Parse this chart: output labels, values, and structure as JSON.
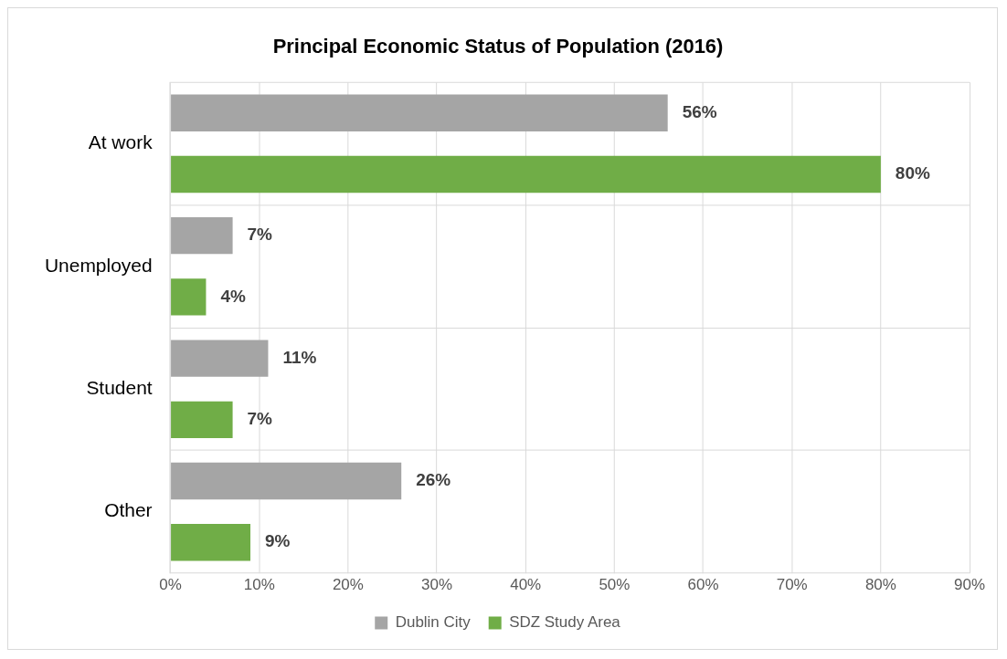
{
  "chart_data": {
    "type": "bar",
    "orientation": "horizontal",
    "title": "Principal Economic Status of Population (2016)",
    "categories": [
      "At work",
      "Unemployed",
      "Student",
      "Other"
    ],
    "series": [
      {
        "name": "Dublin City",
        "color": "#a5a5a5",
        "values": [
          56,
          7,
          11,
          26
        ],
        "value_labels": [
          "56%",
          "7%",
          "11%",
          "26%"
        ]
      },
      {
        "name": "SDZ Study Area",
        "color": "#70ad47",
        "values": [
          80,
          4,
          7,
          9
        ],
        "value_labels": [
          "80%",
          "4%",
          "7%",
          "9%"
        ]
      }
    ],
    "xlim": [
      0,
      90
    ],
    "xticks": [
      {
        "value": 0,
        "label": "0%"
      },
      {
        "value": 10,
        "label": "10%"
      },
      {
        "value": 20,
        "label": "20%"
      },
      {
        "value": 30,
        "label": "30%"
      },
      {
        "value": 40,
        "label": "40%"
      },
      {
        "value": 50,
        "label": "50%"
      },
      {
        "value": 60,
        "label": "60%"
      },
      {
        "value": 70,
        "label": "70%"
      },
      {
        "value": 80,
        "label": "80%"
      },
      {
        "value": 90,
        "label": "90%"
      }
    ],
    "grid": true,
    "legend": "bottom"
  }
}
